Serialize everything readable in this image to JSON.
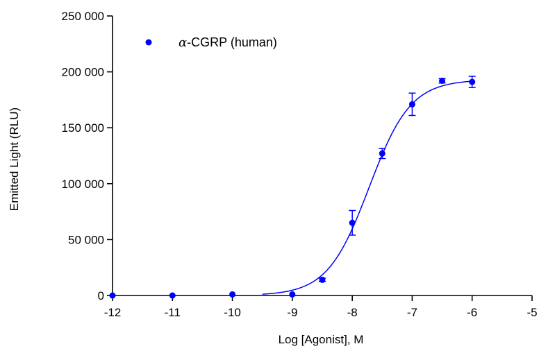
{
  "chart_data": {
    "type": "scatter",
    "xlabel": "Log [Agonist], M",
    "ylabel": "Emitted Light (RLU)",
    "xlim": [
      -12,
      -5
    ],
    "ylim": [
      0,
      250000
    ],
    "x_ticks": [
      -12,
      -11,
      -10,
      -9,
      -8,
      -7,
      -6,
      -5
    ],
    "x_tick_labels": [
      "-12",
      "-11",
      "-10",
      "-9",
      "-8",
      "-7",
      "-6",
      "-5"
    ],
    "y_ticks": [
      0,
      50000,
      100000,
      150000,
      200000,
      250000
    ],
    "y_tick_labels": [
      "0",
      "50 000",
      "100 000",
      "150 000",
      "200 000",
      "250 000"
    ],
    "grid": false,
    "legend_position": "top-left",
    "series": [
      {
        "name": "α-CGRP (human)",
        "color": "#0000ff",
        "marker": "circle",
        "points": [
          {
            "x": -12,
            "y": 0,
            "err": 0
          },
          {
            "x": -11,
            "y": 0,
            "err": 0
          },
          {
            "x": -10,
            "y": 1000,
            "err": 0
          },
          {
            "x": -9,
            "y": 1000,
            "err": 0
          },
          {
            "x": -8.5,
            "y": 14000,
            "err": 1500
          },
          {
            "x": -8,
            "y": 65000,
            "err": 11000
          },
          {
            "x": -7.5,
            "y": 127000,
            "err": 4500
          },
          {
            "x": -7,
            "y": 171000,
            "err": 10000
          },
          {
            "x": -6.5,
            "y": 192000,
            "err": 2000
          },
          {
            "x": -6,
            "y": 191000,
            "err": 5000
          }
        ],
        "fit": {
          "model": "sigmoidal dose-response",
          "bottom": 0,
          "top": 193000,
          "log_ec50": -7.72,
          "hill_slope": 1.25,
          "x_range": [
            -9.5,
            -6
          ]
        }
      }
    ]
  }
}
